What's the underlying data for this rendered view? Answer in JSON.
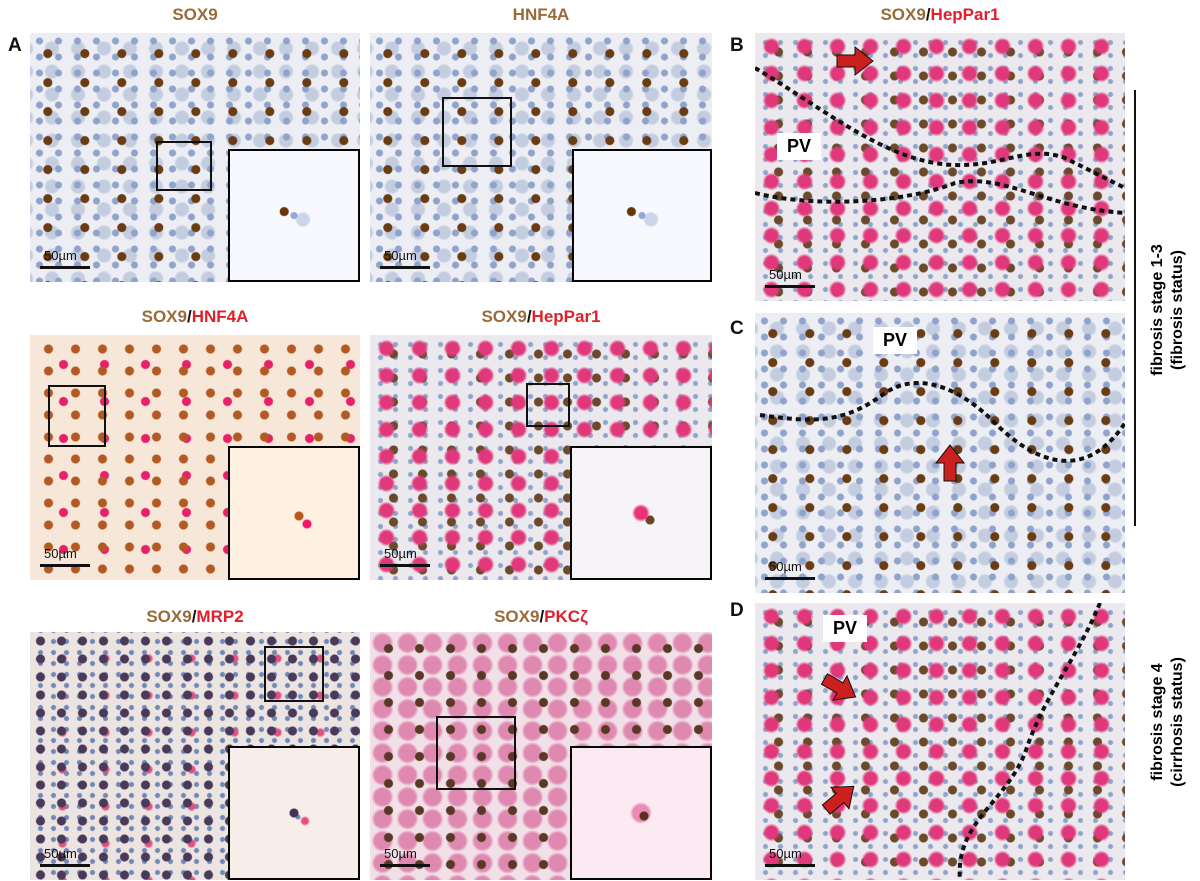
{
  "panel_letters": [
    "A",
    "B",
    "C",
    "D"
  ],
  "images": [
    {
      "title": [
        "SOX9"
      ],
      "scale_bar": "50µm"
    },
    {
      "title": [
        "HNF4A"
      ],
      "scale_bar": "50µm"
    },
    {
      "title": [
        "SOX9",
        "/",
        "HNF4A"
      ],
      "scale_bar": "50µm"
    },
    {
      "title": [
        "SOX9",
        "/",
        "HepPar1"
      ],
      "scale_bar": "50µm"
    },
    {
      "title": [
        "SOX9",
        "/",
        "MRP2"
      ],
      "scale_bar": "50µm"
    },
    {
      "title": [
        "SOX9",
        "/",
        "PKCζ"
      ],
      "scale_bar": "50µm"
    },
    {
      "title": [
        "SOX9",
        "/",
        "HepPar1"
      ],
      "scale_bar": "50µm",
      "label": "PV"
    },
    {
      "scale_bar": "50µm",
      "label": "PV"
    },
    {
      "scale_bar": "50µm",
      "label": "PV"
    }
  ],
  "side_labels": [
    [
      "fibrosis stage  1-3",
      "(fibrosis status)"
    ],
    [
      "fibrosis stage  4",
      "(cirrhosis status)"
    ]
  ]
}
